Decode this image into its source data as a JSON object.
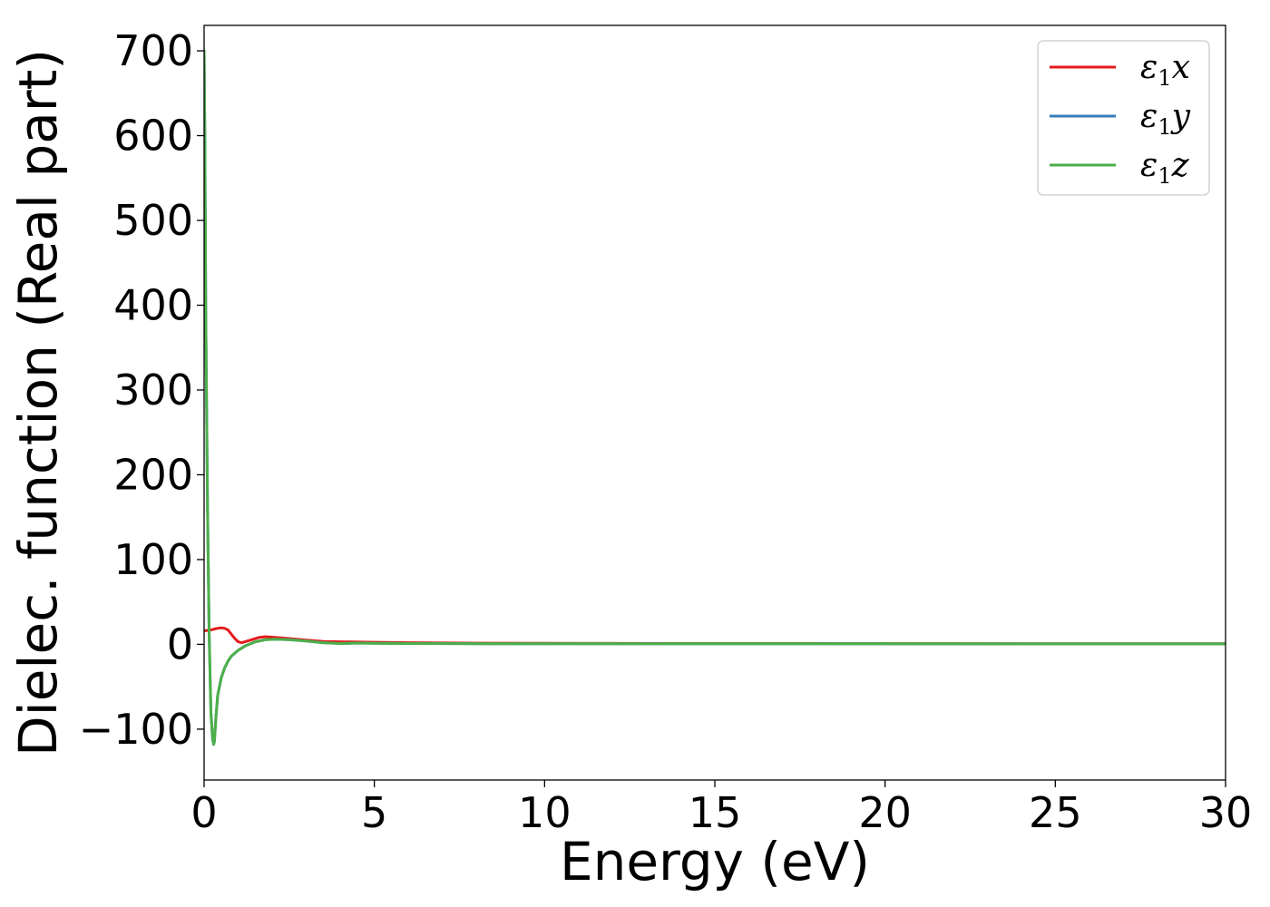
{
  "chart_data": {
    "type": "line",
    "title": "",
    "xlabel": "Energy (eV)",
    "ylabel": "Dielec. function (Real part)",
    "xlim": [
      0,
      30
    ],
    "ylim": [
      -160,
      730
    ],
    "xticks": [
      0,
      5,
      10,
      15,
      20,
      25,
      30
    ],
    "xtick_labels": [
      "0",
      "5",
      "10",
      "15",
      "20",
      "25",
      "30"
    ],
    "yticks": [
      -100,
      0,
      100,
      200,
      300,
      400,
      500,
      600,
      700
    ],
    "ytick_labels": [
      "−100",
      "0",
      "100",
      "200",
      "300",
      "400",
      "500",
      "600",
      "700"
    ],
    "grid": false,
    "legend_position": "top-right",
    "series": [
      {
        "name": "ε₁x",
        "name_base": "ε",
        "name_sub": "1",
        "name_suffix": "x",
        "color": "#e41a1c",
        "x": [
          0,
          0.1,
          0.2,
          0.3,
          0.4,
          0.5,
          0.6,
          0.7,
          0.8,
          0.9,
          1.0,
          1.1,
          1.2,
          1.4,
          1.6,
          1.8,
          2.0,
          2.3,
          2.6,
          3.0,
          3.5,
          4.0,
          5,
          6,
          7,
          8,
          10,
          12,
          15,
          20,
          25,
          30
        ],
        "y": [
          16,
          16.5,
          17,
          18,
          19,
          19.5,
          19,
          17,
          12,
          7,
          3,
          2,
          3,
          5.5,
          8,
          9,
          8.5,
          7.5,
          6.5,
          5,
          3.5,
          3,
          2.5,
          2,
          1.6,
          1.4,
          1.2,
          1.1,
          1.0,
          0.9,
          0.8,
          0.8
        ]
      },
      {
        "name": "ε₁y",
        "name_base": "ε",
        "name_sub": "1",
        "name_suffix": "y",
        "color": "#377eb8",
        "x": [
          0,
          0.02,
          0.05,
          0.1,
          0.15,
          0.2,
          0.25,
          0.28,
          0.3,
          0.35,
          0.4,
          0.5,
          0.6,
          0.7,
          0.8,
          1.0,
          1.2,
          1.5,
          1.8,
          2.1,
          2.5,
          3.0,
          3.5,
          4.0,
          4.5,
          5,
          6,
          8,
          10,
          15,
          20,
          25,
          30
        ],
        "y": [
          700,
          600,
          380,
          160,
          10,
          -80,
          -112,
          -118,
          -115,
          -85,
          -60,
          -40,
          -28,
          -20,
          -14,
          -7,
          -2,
          3,
          5.5,
          6,
          5.5,
          4,
          2,
          1,
          1.5,
          1.2,
          1,
          0.8,
          0.8,
          0.8,
          0.7,
          0.6,
          0.6
        ]
      },
      {
        "name": "ε₁z",
        "name_base": "ε",
        "name_sub": "1",
        "name_suffix": "z",
        "color": "#4daf4a",
        "x": [
          0,
          0.02,
          0.05,
          0.1,
          0.15,
          0.2,
          0.25,
          0.28,
          0.3,
          0.35,
          0.4,
          0.5,
          0.6,
          0.7,
          0.8,
          1.0,
          1.2,
          1.5,
          1.8,
          2.1,
          2.5,
          3.0,
          3.5,
          4.0,
          4.5,
          5,
          6,
          8,
          10,
          15,
          20,
          25,
          30
        ],
        "y": [
          700,
          600,
          380,
          160,
          10,
          -80,
          -112,
          -118,
          -115,
          -85,
          -60,
          -40,
          -28,
          -20,
          -14,
          -7,
          -2,
          3,
          5.5,
          6,
          5.5,
          4,
          2,
          1,
          1.5,
          1.2,
          1,
          0.8,
          0.8,
          0.8,
          0.7,
          0.6,
          0.6
        ]
      }
    ]
  }
}
